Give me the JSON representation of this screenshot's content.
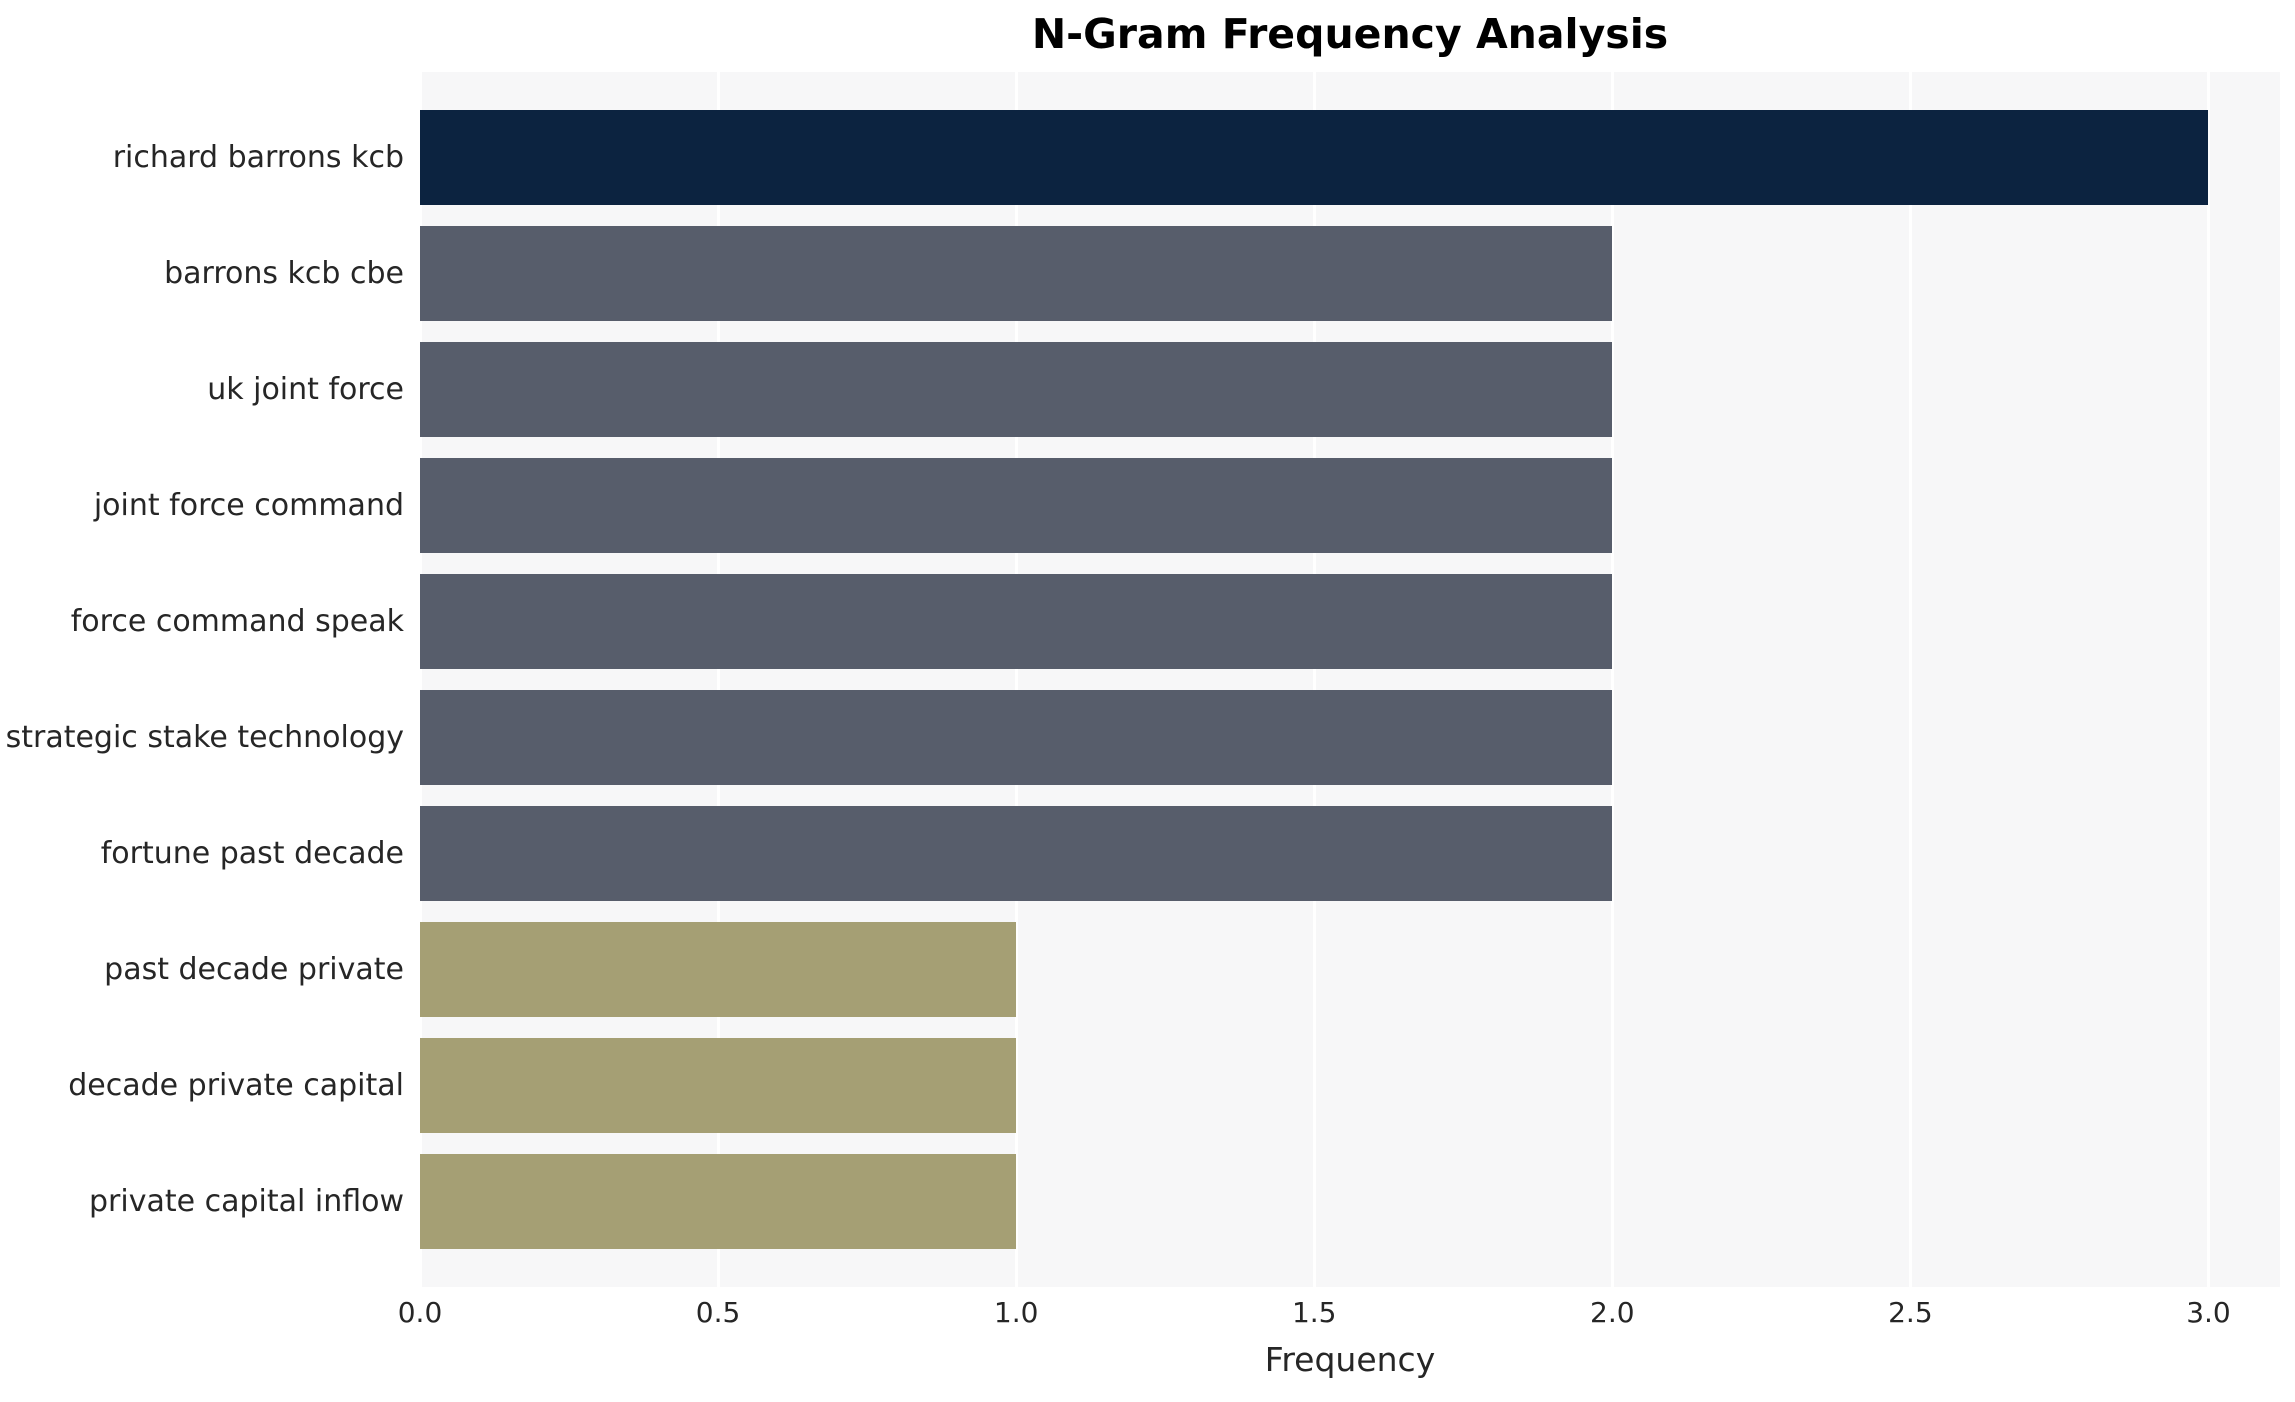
{
  "chart_data": {
    "type": "bar",
    "orientation": "horizontal",
    "title": "N-Gram Frequency Analysis",
    "xlabel": "Frequency",
    "ylabel": "",
    "categories": [
      "richard barrons kcb",
      "barrons kcb cbe",
      "uk joint force",
      "joint force command",
      "force command speak",
      "strategic stake technology",
      "fortune past decade",
      "past decade private",
      "decade private capital",
      "private capital inflow"
    ],
    "values": [
      3,
      2,
      2,
      2,
      2,
      2,
      2,
      1,
      1,
      1
    ],
    "bar_colors": [
      "#0c2340",
      "#575d6b",
      "#575d6b",
      "#575d6b",
      "#575d6b",
      "#575d6b",
      "#575d6b",
      "#a59f74",
      "#a59f74",
      "#a59f74"
    ],
    "xlim": [
      0,
      3.12
    ],
    "xticks": [
      "0.0",
      "0.5",
      "1.0",
      "1.5",
      "2.0",
      "2.5",
      "3.0"
    ],
    "grid": "vertical white gridlines on light gray plot background",
    "legend": "none",
    "plot_bg_color": "#f7f7f8",
    "text_color": "#262626"
  }
}
